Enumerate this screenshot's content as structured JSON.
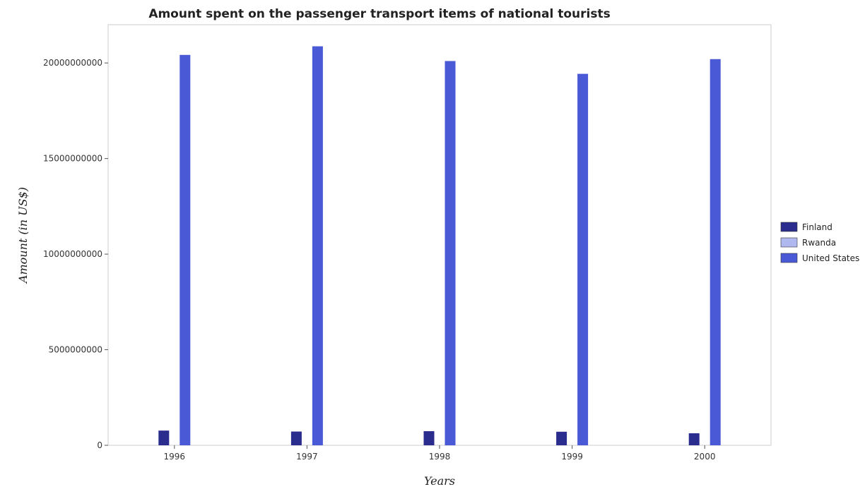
{
  "chart_data": {
    "type": "bar",
    "title": "Amount spent on the passenger transport items of national tourists",
    "xlabel": "Years",
    "ylabel": "Amount (in US$)",
    "categories": [
      "1996",
      "1997",
      "1998",
      "1999",
      "2000"
    ],
    "series": [
      {
        "name": "Finland",
        "color": "#2b2d8e",
        "values": [
          770000000,
          720000000,
          740000000,
          710000000,
          630000000
        ]
      },
      {
        "name": "Rwanda",
        "color": "#b0b8f0",
        "values": [
          1000000,
          1000000,
          1000000,
          1000000,
          1000000
        ]
      },
      {
        "name": "United States",
        "color": "#4a59d6",
        "values": [
          20420000000,
          20870000000,
          20100000000,
          19430000000,
          20200000000
        ]
      }
    ],
    "ylim": [
      0,
      22000000000
    ],
    "yticks": [
      0,
      5000000000,
      10000000000,
      15000000000,
      20000000000
    ],
    "ytick_labels": [
      "0",
      "5000000000",
      "10000000000",
      "15000000000",
      "20000000000"
    ],
    "grid": false,
    "legend_position": "right"
  }
}
